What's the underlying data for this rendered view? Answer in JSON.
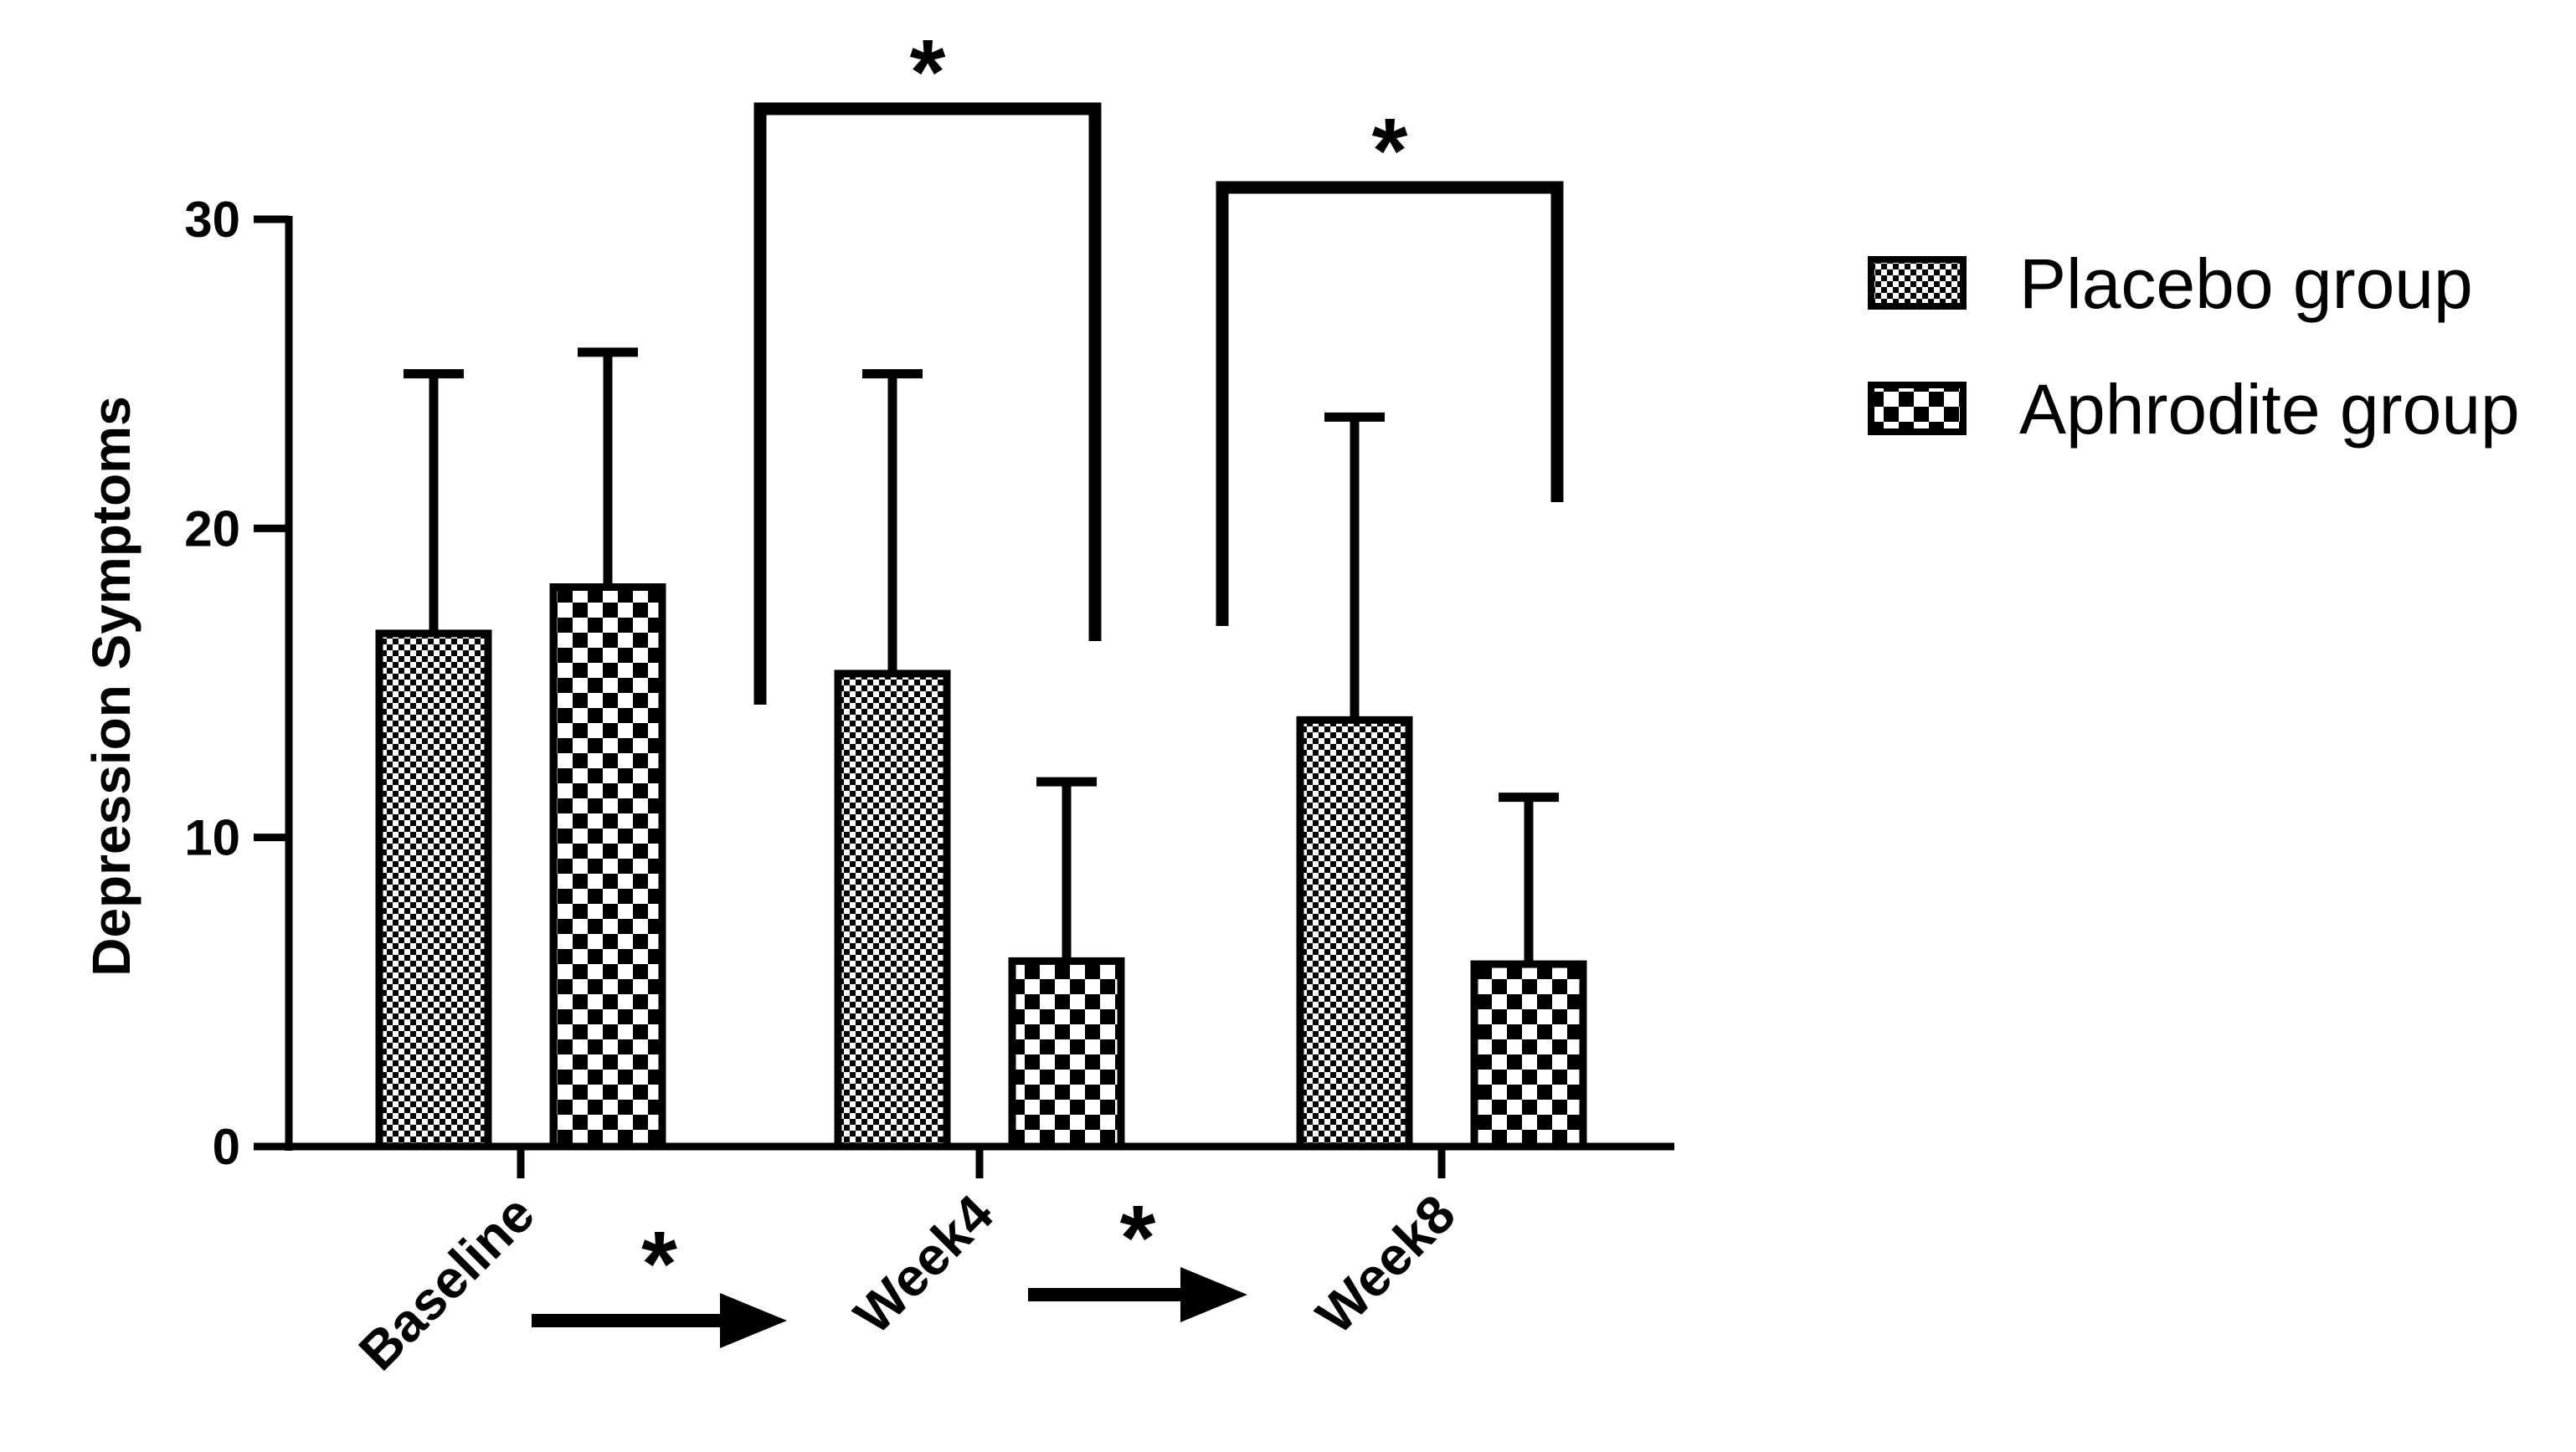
{
  "chart_data": {
    "type": "bar",
    "ylabel": "Depression Symptoms",
    "xlabel": "",
    "ylim": [
      0,
      30
    ],
    "yticks": [
      0,
      10,
      20,
      30
    ],
    "categories": [
      "Baseline",
      "Week4",
      "Week8"
    ],
    "series": [
      {
        "name": "Placebo group",
        "values": [
          16.6,
          15.3,
          13.8
        ],
        "error_upper": [
          25.0,
          25.0,
          23.6
        ],
        "pattern": "fine-checker"
      },
      {
        "name": "Aphrodite group",
        "values": [
          18.1,
          6.0,
          5.9
        ],
        "error_upper": [
          25.7,
          11.8,
          11.3
        ],
        "pattern": "coarse-checker"
      }
    ],
    "legend_position": "right",
    "grid": false,
    "significance": {
      "brackets": [
        {
          "category": "Week4",
          "marker": "*"
        },
        {
          "category": "Week8",
          "marker": "*"
        }
      ],
      "arrows": [
        {
          "from": "Baseline",
          "to": "Week4",
          "marker": "*"
        },
        {
          "from": "Week4",
          "to": "Week8",
          "marker": "*"
        }
      ]
    }
  }
}
